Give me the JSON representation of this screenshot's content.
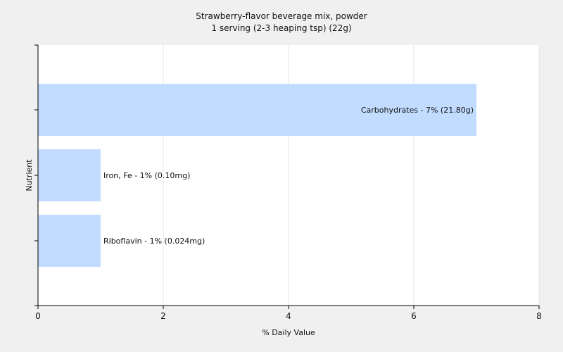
{
  "chart_data": {
    "type": "bar",
    "orientation": "horizontal",
    "title": "Strawberry-flavor beverage mix, powder",
    "subtitle": "1 serving (2-3 heaping tsp) (22g)",
    "xlabel": "% Daily Value",
    "ylabel": "Nutrient",
    "xlim": [
      0,
      8
    ],
    "xticks": [
      "0",
      "2",
      "4",
      "6",
      "8"
    ],
    "grid": true,
    "bar_color": "#c2dcff",
    "categories": [
      "Carbohydrates",
      "Iron, Fe",
      "Riboflavin"
    ],
    "values": [
      7,
      1,
      1
    ],
    "labels": [
      "Carbohydrates - 7% (21.80g)",
      "Iron, Fe - 1% (0.10mg)",
      "Riboflavin - 1% (0.024mg)"
    ]
  }
}
